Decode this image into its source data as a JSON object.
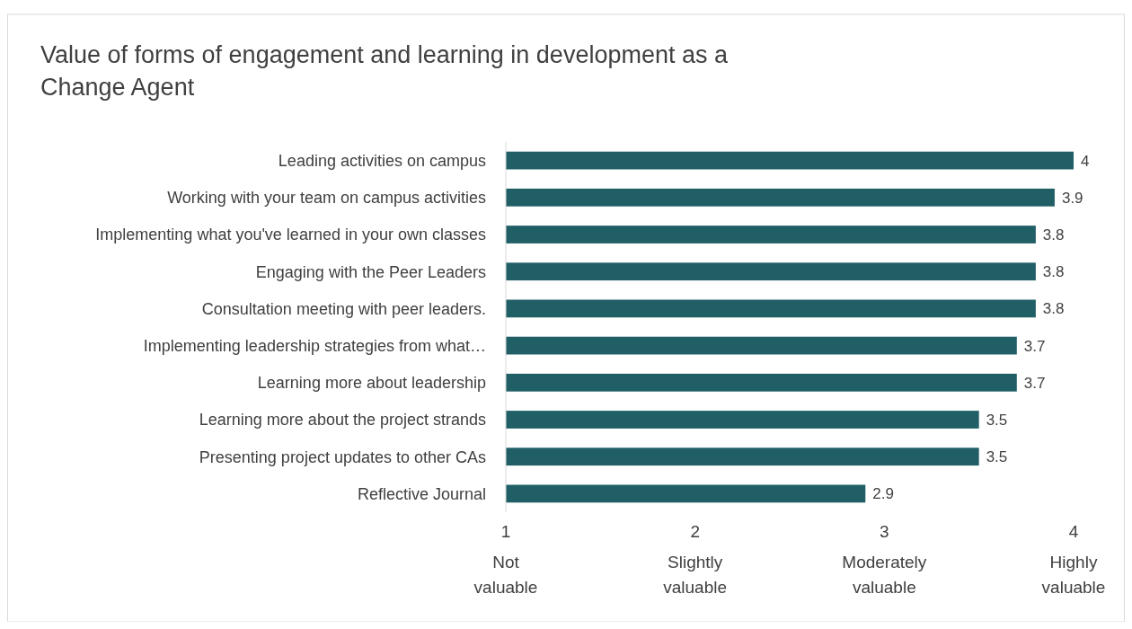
{
  "chart_data": {
    "type": "bar",
    "orientation": "horizontal",
    "title": "Value of forms of engagement and learning in development as a Change Agent",
    "categories": [
      "Leading activities on campus",
      "Working with your team on campus activities",
      "Implementing what you've learned in your own classes",
      "Engaging with the Peer Leaders",
      "Consultation meeting with peer leaders.",
      "Implementing leadership strategies from what…",
      "Learning more about leadership",
      "Learning more about the project strands",
      "Presenting project updates to other CAs",
      "Reflective Journal"
    ],
    "values": [
      4,
      3.9,
      3.8,
      3.8,
      3.8,
      3.7,
      3.7,
      3.5,
      3.5,
      2.9
    ],
    "color": "#215f67",
    "data_labels": true,
    "grid": false,
    "xlim": [
      1,
      4
    ],
    "xticks": [
      {
        "value": 1,
        "label": "1\nNot\nvaluable"
      },
      {
        "value": 2,
        "label": "2\nSlightly\nvaluable"
      },
      {
        "value": 3,
        "label": "3\nModerately\nvaluable"
      },
      {
        "value": 4,
        "label": "4\nHighly\nvaluable"
      }
    ]
  }
}
